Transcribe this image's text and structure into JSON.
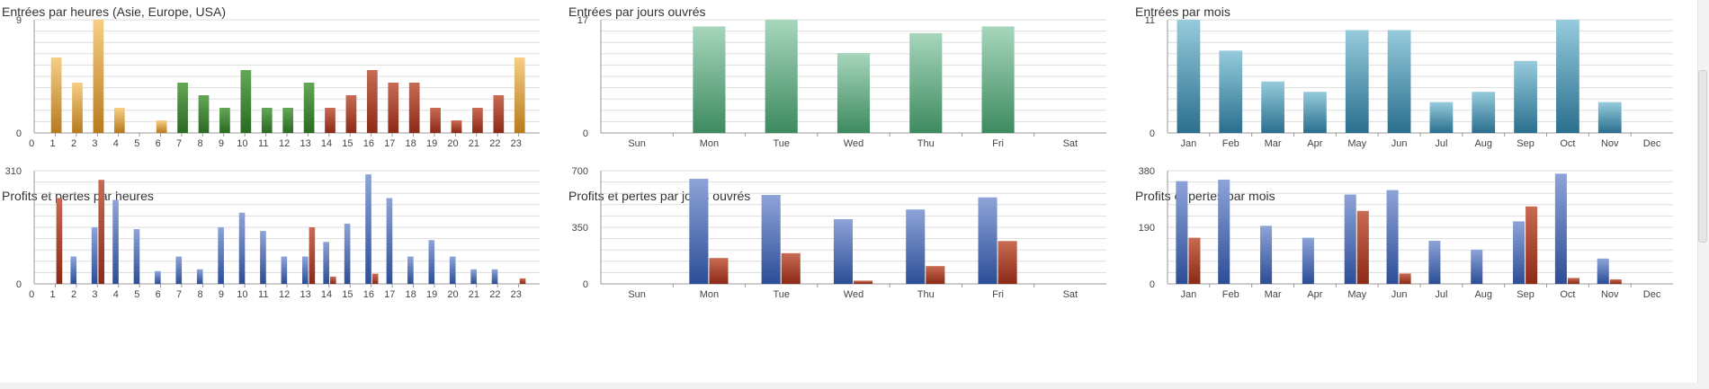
{
  "colors": {
    "gold": [
      "#f6cf85",
      "#b77a1e"
    ],
    "green": [
      "#63a756",
      "#2a6a22"
    ],
    "red": [
      "#c96b53",
      "#8b2a17"
    ],
    "blue": [
      "#8ea4d8",
      "#2c4d96"
    ],
    "mint": [
      "#a7d6bc",
      "#3d8a60"
    ],
    "teal": [
      "#96cbdc",
      "#2a6f8e"
    ],
    "grid": "#dddddd",
    "axis": "#999999"
  },
  "chart_data": [
    {
      "type": "bar",
      "title": "Entrées par heures (Asie, Europe, USA)",
      "categories": [
        "0",
        "1",
        "2",
        "3",
        "4",
        "5",
        "6",
        "7",
        "8",
        "9",
        "10",
        "11",
        "12",
        "13",
        "14",
        "15",
        "16",
        "17",
        "18",
        "19",
        "20",
        "21",
        "22",
        "23"
      ],
      "series": [
        {
          "values": [
            0,
            6,
            4,
            9,
            2,
            0,
            1,
            4,
            3,
            2,
            5,
            2,
            2,
            4,
            2,
            3,
            5,
            4,
            4,
            2,
            1,
            2,
            3,
            6
          ]
        }
      ],
      "bar_colors": [
        "gold",
        "gold",
        "gold",
        "gold",
        "gold",
        "gold",
        "gold",
        "green",
        "green",
        "green",
        "green",
        "green",
        "green",
        "green",
        "red",
        "red",
        "red",
        "red",
        "red",
        "red",
        "red",
        "red",
        "red",
        "gold"
      ],
      "ylim": [
        0,
        9
      ],
      "yticks": [
        0,
        9
      ]
    },
    {
      "type": "bar",
      "title": "Entrées par jours ouvrés",
      "categories": [
        "Sun",
        "Mon",
        "Tue",
        "Wed",
        "Thu",
        "Fri",
        "Sat"
      ],
      "series": [
        {
          "values": [
            0,
            16,
            17,
            12,
            15,
            16,
            0
          ]
        }
      ],
      "bar_colors": [
        "mint",
        "mint",
        "mint",
        "mint",
        "mint",
        "mint",
        "mint"
      ],
      "ylim": [
        0,
        17
      ],
      "yticks": [
        0,
        17
      ]
    },
    {
      "type": "bar",
      "title": "Entrées par mois",
      "categories": [
        "Jan",
        "Feb",
        "Mar",
        "Apr",
        "May",
        "Jun",
        "Jul",
        "Aug",
        "Sep",
        "Oct",
        "Nov",
        "Dec"
      ],
      "series": [
        {
          "values": [
            11,
            8,
            5,
            4,
            10,
            10,
            3,
            4,
            7,
            11,
            3,
            0
          ]
        }
      ],
      "bar_colors": [
        "teal",
        "teal",
        "teal",
        "teal",
        "teal",
        "teal",
        "teal",
        "teal",
        "teal",
        "teal",
        "teal",
        "teal"
      ],
      "ylim": [
        0,
        11
      ],
      "yticks": [
        0,
        11
      ]
    },
    {
      "type": "bar",
      "title": "Profits et pertes par heures",
      "categories": [
        "0",
        "1",
        "2",
        "3",
        "4",
        "5",
        "6",
        "7",
        "8",
        "9",
        "10",
        "11",
        "12",
        "13",
        "14",
        "15",
        "16",
        "17",
        "18",
        "19",
        "20",
        "21",
        "22",
        "23"
      ],
      "series": [
        {
          "values": [
            0,
            0,
            75,
            155,
            230,
            150,
            35,
            75,
            40,
            155,
            195,
            145,
            75,
            75,
            115,
            165,
            300,
            235,
            75,
            120,
            75,
            40,
            40,
            0
          ],
          "color": "blue"
        },
        {
          "values": [
            0,
            235,
            0,
            285,
            0,
            0,
            0,
            0,
            0,
            0,
            0,
            0,
            0,
            155,
            20,
            0,
            28,
            0,
            0,
            0,
            0,
            0,
            0,
            15
          ],
          "color": "red"
        }
      ],
      "ylim": [
        0,
        310
      ],
      "yticks": [
        0,
        310
      ]
    },
    {
      "type": "bar",
      "title": "Profits et pertes par jours ouvrés",
      "categories": [
        "Sun",
        "Mon",
        "Tue",
        "Wed",
        "Thu",
        "Fri",
        "Sat"
      ],
      "series": [
        {
          "values": [
            0,
            650,
            550,
            400,
            460,
            535,
            0
          ],
          "color": "blue"
        },
        {
          "values": [
            0,
            160,
            190,
            20,
            110,
            265,
            0
          ],
          "color": "red"
        }
      ],
      "ylim": [
        0,
        700
      ],
      "yticks": [
        0,
        350,
        700
      ]
    },
    {
      "type": "bar",
      "title": "Profits et pertes par mois",
      "categories": [
        "Jan",
        "Feb",
        "Mar",
        "Apr",
        "May",
        "Jun",
        "Jul",
        "Aug",
        "Sep",
        "Oct",
        "Nov",
        "Dec"
      ],
      "series": [
        {
          "values": [
            345,
            350,
            195,
            155,
            300,
            315,
            145,
            115,
            210,
            370,
            85,
            0
          ],
          "color": "blue"
        },
        {
          "values": [
            155,
            0,
            0,
            0,
            245,
            35,
            0,
            0,
            260,
            20,
            15,
            0
          ],
          "color": "red"
        }
      ],
      "ylim": [
        0,
        380
      ],
      "yticks": [
        0,
        190,
        380
      ]
    }
  ]
}
